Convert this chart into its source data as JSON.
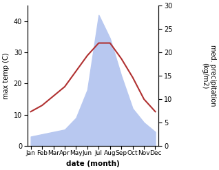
{
  "months": [
    "Jan",
    "Feb",
    "Mar",
    "Apr",
    "May",
    "Jun",
    "Jul",
    "Aug",
    "Sep",
    "Oct",
    "Nov",
    "Dec"
  ],
  "temperature": [
    11,
    13,
    16,
    19,
    24,
    29,
    33,
    33,
    28,
    22,
    15,
    11
  ],
  "precipitation": [
    2.0,
    2.5,
    3.0,
    3.5,
    6.0,
    12.0,
    28.0,
    23.0,
    15.0,
    8.0,
    5.0,
    3.0
  ],
  "temp_color": "#b03030",
  "precip_color": "#b8c8f0",
  "temp_ylim": [
    0,
    45
  ],
  "precip_ylim": [
    0,
    30
  ],
  "temp_yticks": [
    0,
    10,
    20,
    30,
    40
  ],
  "precip_yticks": [
    0,
    5,
    10,
    15,
    20,
    25,
    30
  ],
  "ylabel_left": "max temp (C)",
  "ylabel_right": "med. precipitation\n(kg/m2)",
  "xlabel": "date (month)",
  "figsize": [
    3.18,
    2.47
  ],
  "dpi": 100
}
